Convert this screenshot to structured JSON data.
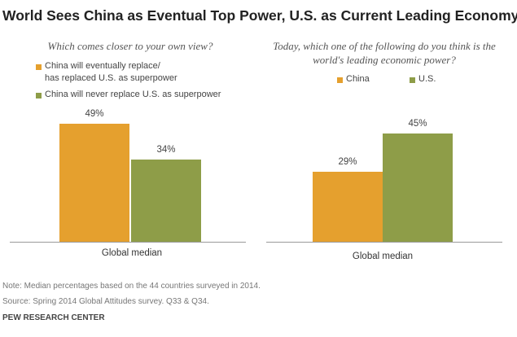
{
  "title": "World Sees China as Eventual Top Power, U.S. as Current Leading Economy",
  "colors": {
    "orange": "#e5a02e",
    "green": "#8e9d48"
  },
  "chart_data": [
    {
      "type": "bar",
      "subtitle": "Which comes closer to your own view?",
      "categories": [
        "Global median"
      ],
      "series": [
        {
          "name": "China will eventually replace/ has replaced U.S. as superpower",
          "name_lines": [
            "China will eventually replace/",
            "has replaced U.S. as superpower"
          ],
          "values": [
            49
          ],
          "labels": [
            "49%"
          ],
          "color": "#e5a02e"
        },
        {
          "name": "China will never replace U.S. as superpower",
          "name_lines": [
            "China will never replace U.S. as superpower"
          ],
          "values": [
            34
          ],
          "labels": [
            "34%"
          ],
          "color": "#8e9d48"
        }
      ],
      "ylim": [
        0,
        55
      ],
      "xlabel": "",
      "ylabel": "",
      "legend_position": "top-left"
    },
    {
      "type": "bar",
      "subtitle": "Today, which one of the following do you think is the world's leading economic power?",
      "subtitle_lines": [
        "Today, which one of the following do you think is the",
        "world's leading economic power?"
      ],
      "categories": [
        "Global median"
      ],
      "series": [
        {
          "name": "China",
          "values": [
            29
          ],
          "labels": [
            "29%"
          ],
          "color": "#e5a02e"
        },
        {
          "name": "U.S.",
          "values": [
            45
          ],
          "labels": [
            "45%"
          ],
          "color": "#8e9d48"
        }
      ],
      "ylim": [
        0,
        55
      ],
      "xlabel": "",
      "ylabel": "",
      "legend_position": "top"
    }
  ],
  "note": "Note: Median percentages based on the 44 countries surveyed in 2014.",
  "source": "Source: Spring 2014 Global Attitudes survey. Q33 & Q34.",
  "brand": "PEW RESEARCH CENTER"
}
